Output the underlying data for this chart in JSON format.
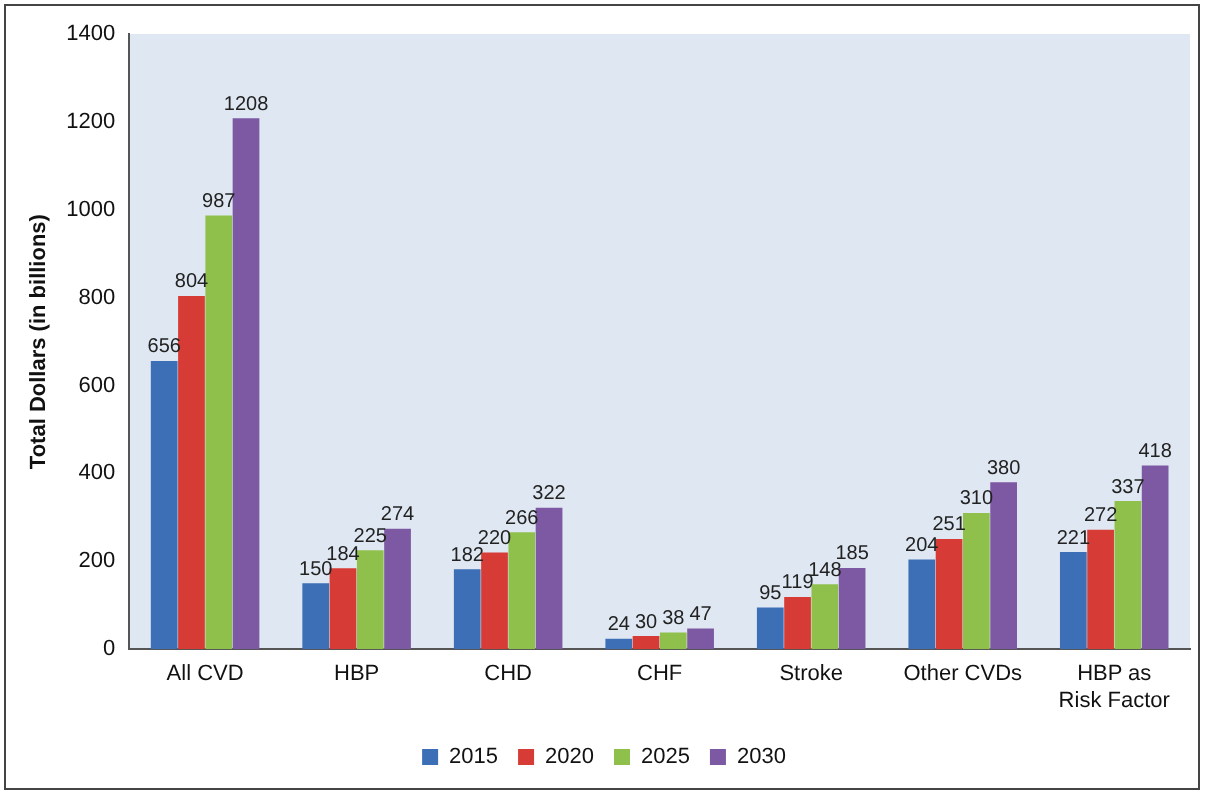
{
  "chart_data": {
    "type": "bar",
    "ylabel": "Total Dollars (in billions)",
    "categories": [
      "All CVD",
      "HBP",
      "CHD",
      "CHF",
      "Stroke",
      "Other CVDs",
      "HBP as Risk Factor"
    ],
    "series": [
      {
        "name": "2015",
        "color": "#3d6fb6",
        "values": [
          656,
          150,
          182,
          24,
          95,
          204,
          221
        ]
      },
      {
        "name": "2020",
        "color": "#d73b35",
        "values": [
          804,
          184,
          220,
          30,
          119,
          251,
          272
        ]
      },
      {
        "name": "2025",
        "color": "#8fc04c",
        "values": [
          987,
          225,
          266,
          38,
          148,
          310,
          337
        ]
      },
      {
        "name": "2030",
        "color": "#7d59a3",
        "values": [
          1208,
          274,
          322,
          47,
          185,
          380,
          418
        ]
      }
    ],
    "ylim": [
      0,
      1400
    ],
    "yticks": [
      0,
      200,
      400,
      600,
      800,
      1000,
      1200,
      1400
    ],
    "grid": false,
    "legend": "bottom",
    "data_labels": true
  }
}
